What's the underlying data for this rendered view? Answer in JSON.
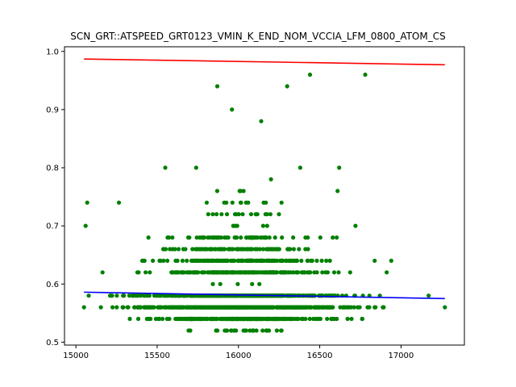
{
  "chart_data": {
    "type": "scatter",
    "title": "SCN_GRT::ATSPEED_GRT0123_VMIN_K_END_NOM_VCCIA_LFM_0800_ATOM_CS",
    "xlabel": "",
    "ylabel": "",
    "xlim": [
      14930,
      17390
    ],
    "ylim": [
      0.495,
      1.008
    ],
    "xticks": [
      15000,
      15500,
      16000,
      16500,
      17000
    ],
    "xtick_labels": [
      "15000",
      "15500",
      "16000",
      "16500",
      "17000"
    ],
    "yticks": [
      0.5,
      0.6,
      0.7,
      0.8,
      0.9,
      1.0
    ],
    "ytick_labels": [
      "0.5",
      "0.6",
      "0.7",
      "0.8",
      "0.9",
      "1.0"
    ],
    "grid": false,
    "series": [
      {
        "kind": "points",
        "color": "#008000",
        "x_range": [
          15050,
          17270
        ],
        "y_levels": [
          0.52,
          0.54,
          0.56,
          0.58,
          0.6,
          0.62,
          0.64,
          0.66,
          0.68,
          0.7,
          0.72,
          0.74,
          0.76
        ],
        "outliers": [
          {
            "x": 15060,
            "y": 0.7
          },
          {
            "x": 15070,
            "y": 0.74
          },
          {
            "x": 15265,
            "y": 0.74
          },
          {
            "x": 15550,
            "y": 0.8
          },
          {
            "x": 15740,
            "y": 0.8
          },
          {
            "x": 15870,
            "y": 0.94
          },
          {
            "x": 15960,
            "y": 0.9
          },
          {
            "x": 16140,
            "y": 0.88
          },
          {
            "x": 16200,
            "y": 0.78
          },
          {
            "x": 16300,
            "y": 0.94
          },
          {
            "x": 16380,
            "y": 0.8
          },
          {
            "x": 16440,
            "y": 0.96
          },
          {
            "x": 16620,
            "y": 0.8
          },
          {
            "x": 16780,
            "y": 0.96
          },
          {
            "x": 16610,
            "y": 0.76
          },
          {
            "x": 16720,
            "y": 0.7
          },
          {
            "x": 16940,
            "y": 0.64
          },
          {
            "x": 17170,
            "y": 0.58
          },
          {
            "x": 17270,
            "y": 0.56
          },
          {
            "x": 15050,
            "y": 0.56
          }
        ]
      },
      {
        "kind": "line",
        "color": "#ff0000",
        "x": [
          15050,
          17270
        ],
        "y": [
          0.987,
          0.977
        ]
      },
      {
        "kind": "line",
        "color": "#0000ff",
        "x": [
          15050,
          17270
        ],
        "y": [
          0.586,
          0.575
        ]
      }
    ]
  }
}
